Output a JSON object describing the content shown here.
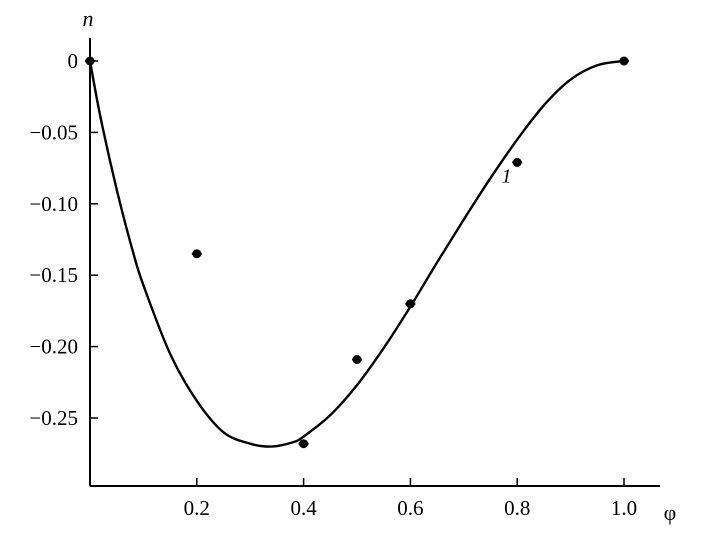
{
  "chart_data": {
    "type": "scatter",
    "xlabel": "φ",
    "ylabel": "n",
    "xlim": [
      0,
      1.07
    ],
    "ylim": [
      -0.3,
      0.015
    ],
    "x_ticks": [
      0.2,
      0.4,
      0.6,
      0.8,
      1.0
    ],
    "x_tick_labels": [
      "0.2",
      "0.4",
      "0.6",
      "0.8",
      "1.0"
    ],
    "y_ticks": [
      0,
      -0.05,
      -0.1,
      -0.15,
      -0.2,
      -0.25
    ],
    "y_tick_labels": [
      "0",
      "−0.05",
      "−0.10",
      "−0.15",
      "−0.20",
      "−0.25"
    ],
    "grid": false,
    "series": [
      {
        "kind": "points",
        "x": [
          0.0,
          0.2,
          0.4,
          0.5,
          0.6,
          0.8,
          1.0
        ],
        "y": [
          0.0,
          -0.135,
          -0.268,
          -0.209,
          -0.17,
          -0.071,
          0.0
        ]
      },
      {
        "kind": "line",
        "x": [
          0.0,
          0.02,
          0.05,
          0.08,
          0.1,
          0.15,
          0.2,
          0.25,
          0.3,
          0.34,
          0.38,
          0.4,
          0.45,
          0.5,
          0.55,
          0.6,
          0.65,
          0.7,
          0.75,
          0.8,
          0.85,
          0.9,
          0.95,
          1.0
        ],
        "y": [
          0.0,
          -0.04,
          -0.09,
          -0.133,
          -0.157,
          -0.205,
          -0.238,
          -0.26,
          -0.268,
          -0.27,
          -0.267,
          -0.263,
          -0.248,
          -0.227,
          -0.201,
          -0.172,
          -0.141,
          -0.111,
          -0.082,
          -0.055,
          -0.031,
          -0.013,
          -0.003,
          0.0
        ]
      }
    ],
    "annotations": [
      {
        "text": "1",
        "x": 0.78,
        "y": -0.085
      }
    ]
  }
}
